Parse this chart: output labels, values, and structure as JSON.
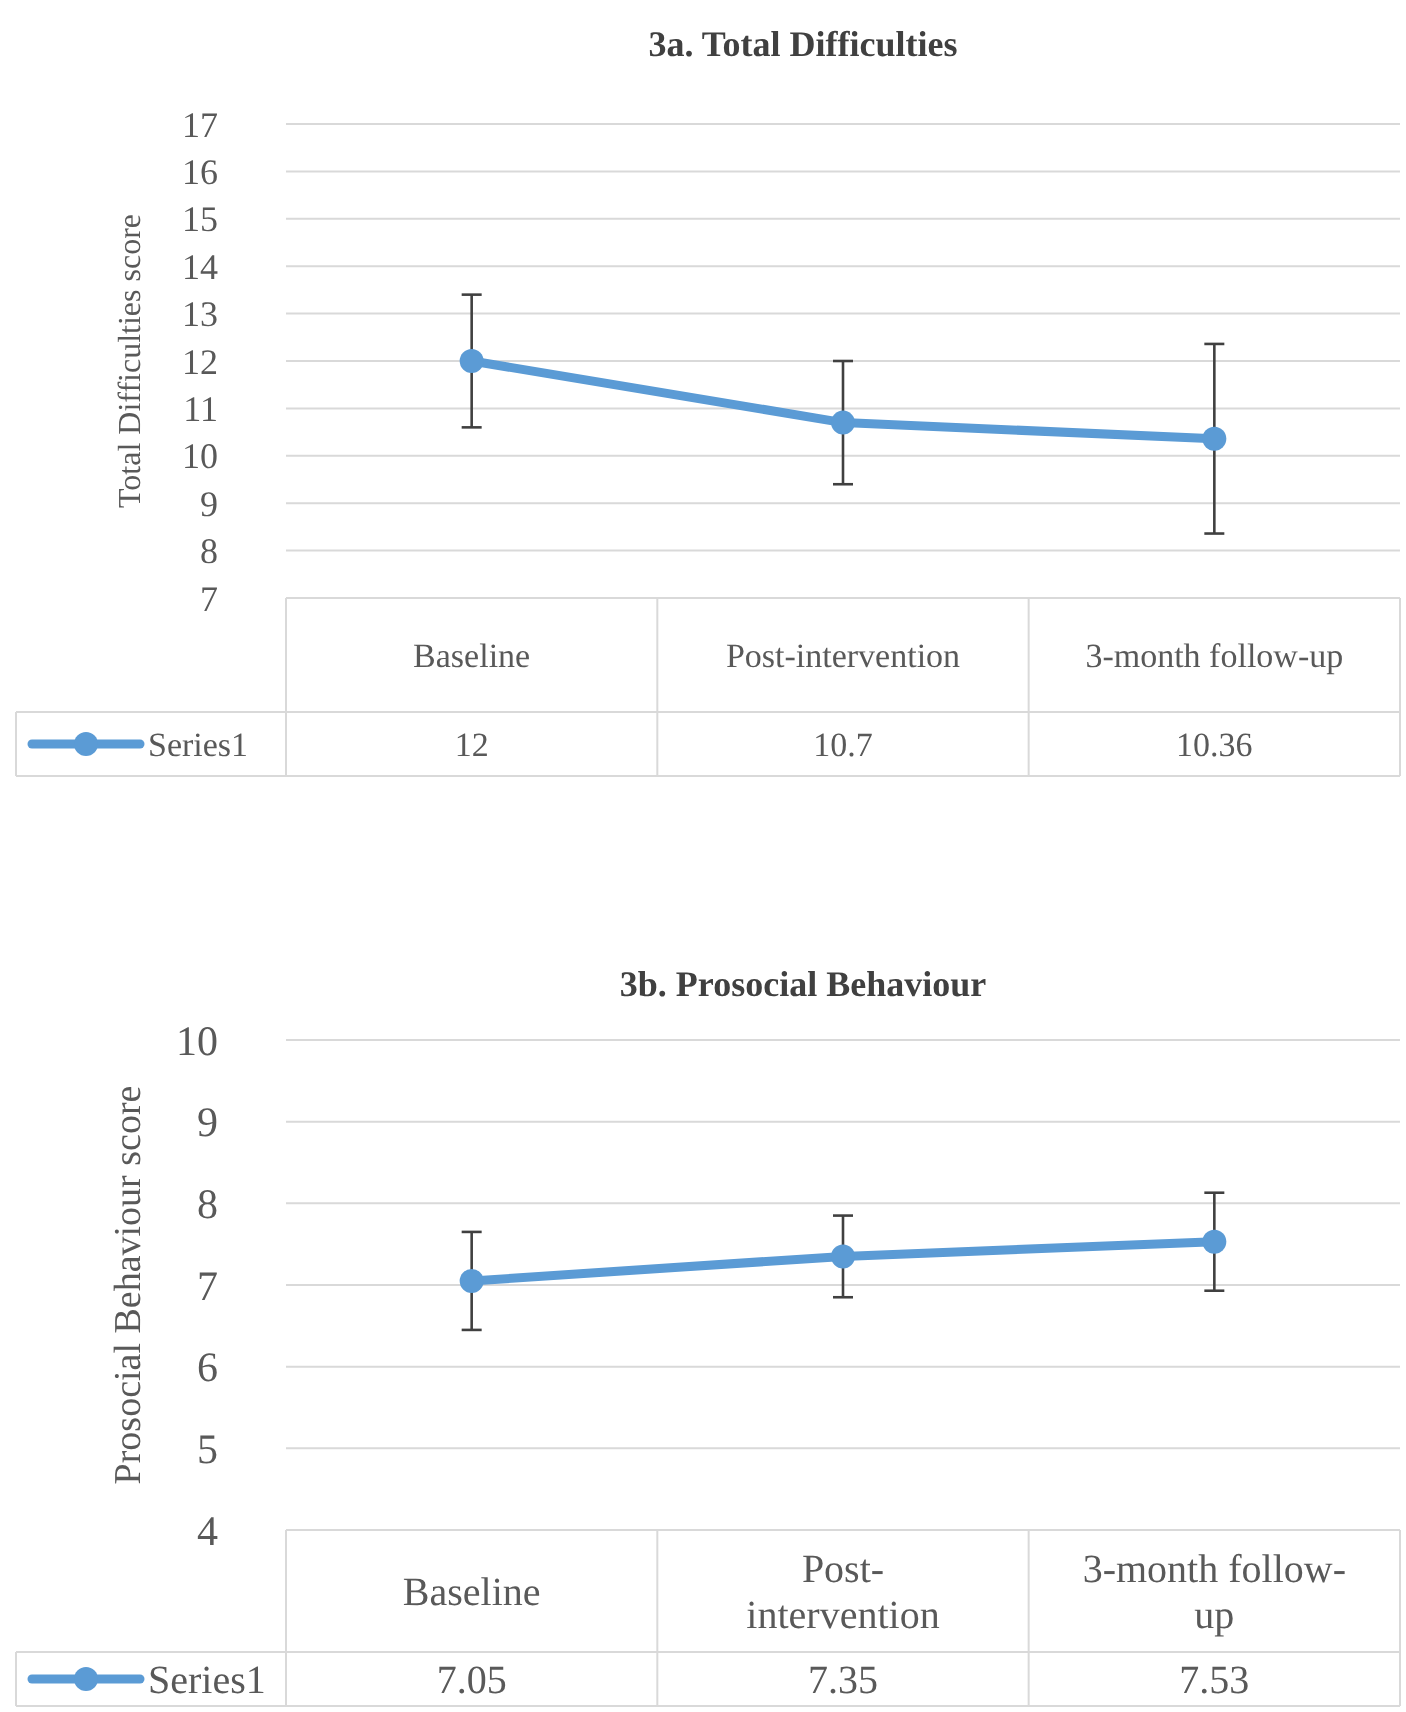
{
  "chart_data": [
    {
      "type": "line",
      "title": "3a. Total Difficulties",
      "ylabel": "Total Difficulties score",
      "categories": [
        "Baseline",
        "Post-intervention",
        "3-month follow-up"
      ],
      "series": [
        {
          "name": "Series1",
          "color": "#5b9bd5",
          "values": [
            12,
            10.7,
            10.36
          ],
          "errors": [
            [
              10.6,
              13.4
            ],
            [
              9.4,
              12.0
            ],
            [
              8.36,
              12.36
            ]
          ]
        }
      ],
      "ylim": [
        7,
        17
      ],
      "yticks": [
        7,
        8,
        9,
        10,
        11,
        12,
        13,
        14,
        15,
        16,
        17
      ],
      "grid": "y",
      "marker": "circle",
      "line_style": "solid",
      "data_labels": true,
      "legend": "bottom"
    },
    {
      "type": "line",
      "title": "3b. Prosocial Behaviour",
      "ylabel": "Prosocial Behaviour score",
      "categories": [
        "Baseline",
        "Post-intervention",
        "3-month follow-up"
      ],
      "series": [
        {
          "name": "Series1",
          "color": "#5b9bd5",
          "values": [
            7.05,
            7.35,
            7.53
          ],
          "errors": [
            [
              6.45,
              7.65
            ],
            [
              6.85,
              7.85
            ],
            [
              6.93,
              8.13
            ]
          ]
        }
      ],
      "ylim": [
        4,
        10
      ],
      "yticks": [
        4,
        5,
        6,
        7,
        8,
        9,
        10
      ],
      "grid": "y",
      "marker": "circle",
      "line_style": "solid",
      "data_labels": true,
      "legend": "bottom"
    }
  ]
}
